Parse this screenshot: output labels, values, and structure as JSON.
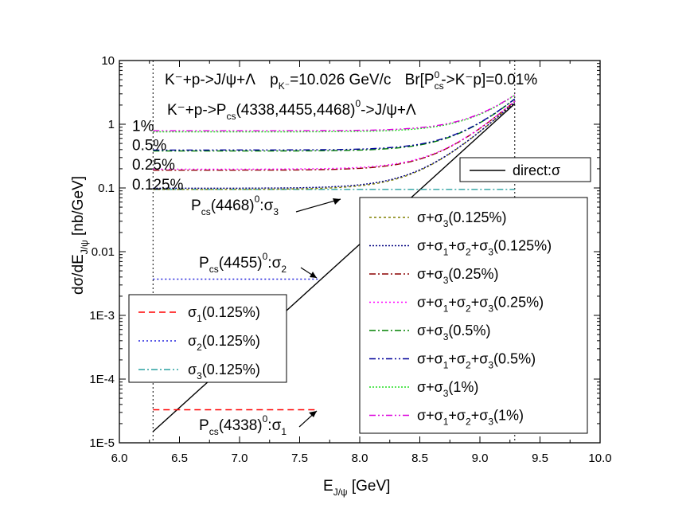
{
  "chart_data": {
    "type": "line",
    "log_y": true,
    "xlim": [
      6.0,
      10.0
    ],
    "ylim": [
      1e-05,
      10
    ],
    "x_ticks": [
      "6.0",
      "6.5",
      "7.0",
      "7.5",
      "8.0",
      "8.5",
      "9.0",
      "9.5",
      "10.0"
    ],
    "x_tick_values": [
      6.0,
      6.5,
      7.0,
      7.5,
      8.0,
      8.5,
      9.0,
      9.5,
      10.0
    ],
    "y_ticks": [
      "1E-5",
      "1E-4",
      "1E-3",
      "0.01",
      "0.1",
      "1",
      "10"
    ],
    "y_tick_values": [
      1e-05,
      0.0001,
      0.001,
      0.01,
      0.1,
      1,
      10
    ],
    "xlabel": "E",
    "xlabel_sub": "J/ψ",
    "xlabel_unit": " [GeV]",
    "ylabel": "dσ/dE",
    "ylabel_sub": "J/ψ",
    "ylabel_unit": " [nb/GeV]",
    "vlines": [
      6.28,
      9.29
    ],
    "title_line1": {
      "reaction": "K⁻+p->J/ψ+Λ",
      "pk": "p",
      "pk_sub": "K⁻",
      "pk_val": "=10.026 GeV/c",
      "br": "Br[P",
      "br_sub": "cs",
      "br_sup": "0",
      "br_rest": "->K⁻p]=0.01%"
    },
    "title_line2": "K⁻+p->P",
    "title_line2_sub": "cs",
    "title_line2_rest": "(4338,4455,4468)",
    "title_line2_sup": "0",
    "title_line2_end": "->J/ψ+Λ",
    "series": [
      {
        "name": "direct:σ",
        "color": "#000000",
        "dash": "",
        "kind": "direct",
        "x0": 6.28,
        "x1": 9.29,
        "y0": 1.5e-05,
        "y1": 2.1
      },
      {
        "name": "σ1(0.125%)",
        "color": "#ff0000",
        "dash": "8,5",
        "kind": "flat",
        "x0": 6.28,
        "x1": 7.65,
        "y": 3.3e-05
      },
      {
        "name": "σ2(0.125%)",
        "color": "#2222dd",
        "dash": "2,3",
        "kind": "flat",
        "x0": 6.28,
        "x1": 7.65,
        "y": 0.0037
      },
      {
        "name": "σ3(0.125%)",
        "color": "#2aa0a0",
        "dash": "8,3,2,3",
        "kind": "flat",
        "x0": 6.28,
        "x1": 9.29,
        "y": 0.095
      },
      {
        "name": "σ+σ3(0.125%)",
        "color": "#808000",
        "dash": "3,3",
        "kind": "sum",
        "x0": 6.28,
        "x1": 9.29,
        "base": 0.095
      },
      {
        "name": "σ+σ1+σ2+σ3(0.125%)",
        "color": "#000080",
        "dash": "2,2",
        "kind": "sum",
        "x0": 6.28,
        "x1": 9.29,
        "base": 0.099
      },
      {
        "name": "σ+σ3(0.25%)",
        "color": "#8b0000",
        "dash": "8,3,2,3",
        "kind": "sum",
        "x0": 6.28,
        "x1": 9.29,
        "base": 0.19
      },
      {
        "name": "σ+σ1+σ2+σ3(0.25%)",
        "color": "#ff00ff",
        "dash": "2,3",
        "kind": "sum",
        "x0": 6.28,
        "x1": 9.29,
        "base": 0.197
      },
      {
        "name": "σ+σ3(0.5%)",
        "color": "#008000",
        "dash": "8,3,2,3",
        "kind": "sum",
        "x0": 6.28,
        "x1": 9.29,
        "base": 0.38
      },
      {
        "name": "σ+σ1+σ2+σ3(0.5%)",
        "color": "#000099",
        "dash": "8,3,2,3,2,3",
        "kind": "sum",
        "x0": 6.28,
        "x1": 9.29,
        "base": 0.394
      },
      {
        "name": "σ+σ3(1%)",
        "color": "#22dd22",
        "dash": "2,2",
        "kind": "sum",
        "x0": 6.28,
        "x1": 9.29,
        "base": 0.76
      },
      {
        "name": "σ+σ1+σ2+σ3(1%)",
        "color": "#dd00dd",
        "dash": "8,3,2,3,2,3",
        "kind": "sum",
        "x0": 6.28,
        "x1": 9.29,
        "base": 0.79
      }
    ],
    "percent_labels": [
      {
        "text": "1%",
        "y": 0.93
      },
      {
        "text": "0.5%",
        "y": 0.465
      },
      {
        "text": "0.25%",
        "y": 0.232
      },
      {
        "text": "0.125%",
        "y": 0.112
      }
    ],
    "annotations": [
      {
        "main": "P",
        "sub": "cs",
        "mid": "(4468)",
        "sup": "0",
        "end": ":σ",
        "end_sub": "3"
      },
      {
        "main": "P",
        "sub": "cs",
        "mid": "(4455)",
        "sup": "0",
        "end": ":σ",
        "end_sub": "2"
      },
      {
        "main": "P",
        "sub": "cs",
        "mid": "(4338)",
        "sup": "0",
        "end": ":σ",
        "end_sub": "1"
      }
    ],
    "legend_direct": "direct:σ",
    "legend_left": [
      {
        "label": "σ",
        "label_sub": "1",
        "tail": "(0.125%)",
        "series": 1
      },
      {
        "label": "σ",
        "label_sub": "2",
        "tail": "(0.125%)",
        "series": 2
      },
      {
        "label": "σ",
        "label_sub": "3",
        "tail": "(0.125%)",
        "series": 3
      }
    ],
    "legend_right": [
      {
        "parts": [
          "σ+σ",
          "3",
          "(0.125%)"
        ],
        "series": 4
      },
      {
        "parts": [
          "σ+σ",
          "1",
          "+σ",
          "2",
          "+σ",
          "3",
          "(0.125%)"
        ],
        "series": 5
      },
      {
        "parts": [
          "σ+σ",
          "3",
          "(0.25%)"
        ],
        "series": 6
      },
      {
        "parts": [
          "σ+σ",
          "1",
          "+σ",
          "2",
          "+σ",
          "3",
          "(0.25%)"
        ],
        "series": 7
      },
      {
        "parts": [
          "σ+σ",
          "3",
          "(0.5%)"
        ],
        "series": 8
      },
      {
        "parts": [
          "σ+σ",
          "1",
          "+σ",
          "2",
          "+σ",
          "3",
          "(0.5%)"
        ],
        "series": 9
      },
      {
        "parts": [
          "σ+σ",
          "3",
          "(1%)"
        ],
        "series": 10
      },
      {
        "parts": [
          "σ+σ",
          "1",
          "+σ",
          "2",
          "+σ",
          "3",
          "(1%)"
        ],
        "series": 11
      }
    ]
  }
}
